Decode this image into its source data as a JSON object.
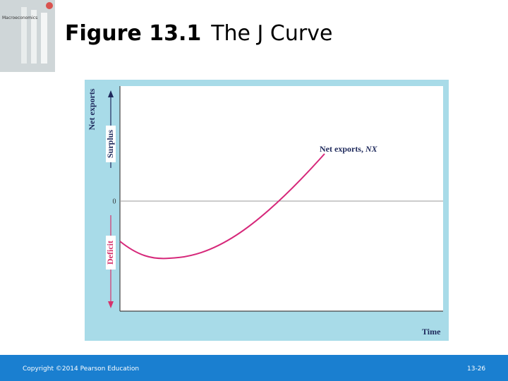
{
  "header": {
    "figure_number": "Figure 13.1",
    "title": "The J Curve"
  },
  "book_cover": {
    "title": "Macroeconomics"
  },
  "figure": {
    "y_axis_label": "Net exports",
    "upper_label": "Surplus",
    "lower_label": "Deficit",
    "zero_label": "0",
    "curve_label": "Net exports, ",
    "curve_symbol": "NX",
    "x_axis_label": "Time"
  },
  "footer": {
    "copyright": "Copyright ©2014 Pearson Education",
    "page": "13-26"
  }
}
